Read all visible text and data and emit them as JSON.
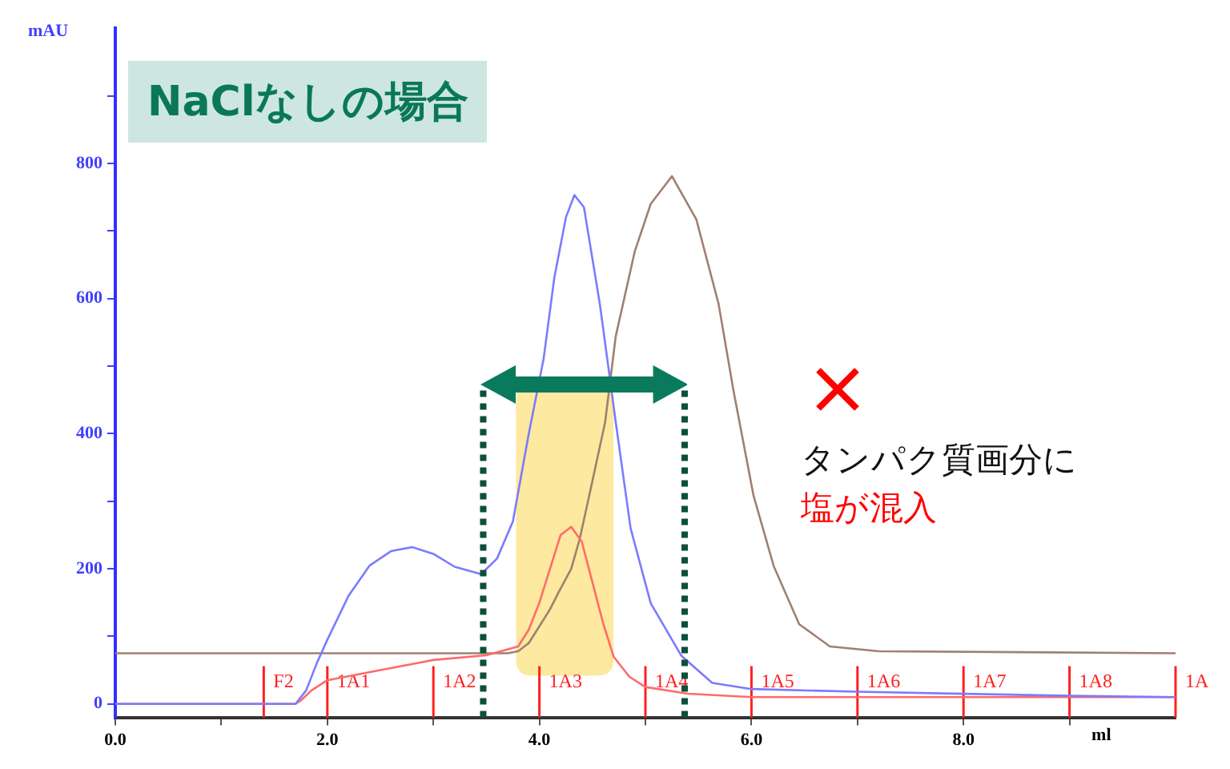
{
  "chart_data": {
    "type": "line",
    "title": "NaClなしの場合",
    "xlabel": "ml",
    "ylabel": "mAU",
    "xlim": [
      0,
      10
    ],
    "ylim": [
      -20,
      1000
    ],
    "xticks": [
      {
        "value": 0,
        "label": "0.0"
      },
      {
        "value": 1,
        "label": null
      },
      {
        "value": 2,
        "label": "2.0"
      },
      {
        "value": 3,
        "label": null
      },
      {
        "value": 4,
        "label": "4.0"
      },
      {
        "value": 5,
        "label": null
      },
      {
        "value": 6,
        "label": "6.0"
      },
      {
        "value": 7,
        "label": null
      },
      {
        "value": 8,
        "label": "8.0"
      },
      {
        "value": 9,
        "label": null
      }
    ],
    "yticks": [
      0,
      {
        "value": 100,
        "label": null
      },
      200,
      {
        "value": 300,
        "label": null
      },
      400,
      {
        "value": 500,
        "label": null
      },
      600,
      {
        "value": 700,
        "label": null
      },
      800,
      {
        "value": 900,
        "label": null
      }
    ],
    "grid": false,
    "legend": false,
    "marker": "none",
    "line_style": "solid",
    "series": [
      {
        "color": "#7b7bff",
        "x": [
          0,
          1.7,
          1.8,
          1.9,
          2.0,
          2.2,
          2.4,
          2.6,
          2.8,
          3.0,
          3.2,
          3.45,
          3.6,
          3.75,
          3.9,
          4.04,
          4.14,
          4.25,
          4.33,
          4.42,
          4.57,
          4.72,
          4.86,
          5.05,
          5.34,
          5.63,
          6.0,
          7.0,
          8.0,
          9.0,
          10.0
        ],
        "values": [
          0,
          0,
          20,
          60,
          95,
          160,
          205,
          226,
          232,
          222,
          203,
          192,
          215,
          270,
          400,
          511,
          630,
          720,
          753,
          735,
          592,
          417,
          260,
          149,
          71,
          31,
          22,
          18,
          15,
          12,
          10
        ]
      },
      {
        "color": "#ff6b6b",
        "x": [
          0,
          1.7,
          1.75,
          1.85,
          2.0,
          2.5,
          3.0,
          3.5,
          3.8,
          3.9,
          4.0,
          4.1,
          4.2,
          4.3,
          4.4,
          4.5,
          4.6,
          4.7,
          4.85,
          5.0,
          5.4,
          6.0,
          10.0
        ],
        "values": [
          0,
          0,
          5,
          20,
          35,
          50,
          65,
          72,
          85,
          110,
          150,
          200,
          250,
          262,
          240,
          180,
          120,
          70,
          40,
          25,
          15,
          10,
          10
        ]
      },
      {
        "color": "#a08070",
        "x": [
          0,
          3.7,
          3.8,
          3.9,
          4.0,
          4.1,
          4.18,
          4.3,
          4.38,
          4.5,
          4.62,
          4.72,
          4.9,
          5.05,
          5.25,
          5.48,
          5.69,
          5.83,
          6.02,
          6.21,
          6.45,
          6.74,
          7.2,
          10.0
        ],
        "values": [
          75,
          75,
          78,
          90,
          115,
          140,
          165,
          200,
          244,
          330,
          417,
          544,
          670,
          740,
          781,
          717,
          592,
          464,
          308,
          204,
          118,
          85,
          78,
          75
        ]
      }
    ],
    "bands": [
      {
        "axis": "x",
        "from": 3.78,
        "to": 4.7,
        "color": "#fde9a0"
      }
    ],
    "ref_lines": [
      {
        "axis": "x",
        "value": 1.4,
        "label": "F2",
        "color": "#ff2020"
      },
      {
        "axis": "x",
        "value": 2.0,
        "label": "1A1",
        "color": "#ff2020"
      },
      {
        "axis": "x",
        "value": 3.0,
        "label": "1A2",
        "color": "#ff2020"
      },
      {
        "axis": "x",
        "value": 4.0,
        "label": "1A3",
        "color": "#ff2020"
      },
      {
        "axis": "x",
        "value": 5.0,
        "label": "1A4",
        "color": "#ff2020"
      },
      {
        "axis": "x",
        "value": 6.0,
        "label": "1A5",
        "color": "#ff2020"
      },
      {
        "axis": "x",
        "value": 7.0,
        "label": "1A6",
        "color": "#ff2020"
      },
      {
        "axis": "x",
        "value": 8.0,
        "label": "1A7",
        "color": "#ff2020"
      },
      {
        "axis": "x",
        "value": 9.0,
        "label": "1A8",
        "color": "#ff2020"
      },
      {
        "axis": "x",
        "value": 10.0,
        "label": "1A",
        "color": "#ff2020"
      },
      {
        "axis": "x",
        "value": 3.47,
        "color": "#0b4f3c",
        "line_style": "dotted"
      },
      {
        "axis": "x",
        "value": 5.37,
        "color": "#0b4f3c",
        "line_style": "dotted"
      }
    ],
    "annotations": [
      "タンパク質画分に",
      "塩が混入"
    ]
  }
}
